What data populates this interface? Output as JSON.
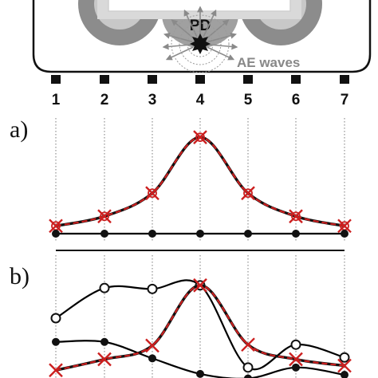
{
  "header": {
    "pd_label": "PD",
    "ae_label": "AE waves"
  },
  "sensors": [
    "1",
    "2",
    "3",
    "4",
    "5",
    "6",
    "7"
  ],
  "panels": [
    {
      "label": "a)"
    },
    {
      "label": "b)"
    }
  ],
  "colors": {
    "red_curve": "#cc1f1f",
    "black_curve": "#000000",
    "gray_dark": "#7f7f7f",
    "gray_light": "#bdbdbd",
    "ae_arrow": "#8a8a8a"
  },
  "chart_data": [
    {
      "type": "line",
      "panel": "a)",
      "categories": [
        "1",
        "2",
        "3",
        "4",
        "5",
        "6",
        "7"
      ],
      "series": [
        {
          "style": "red-dashed-x",
          "values": [
            0.08,
            0.18,
            0.42,
            1.0,
            0.42,
            0.18,
            0.08
          ]
        },
        {
          "style": "black-solid-filled",
          "values": [
            0,
            0,
            0,
            0,
            0,
            0,
            0
          ]
        }
      ],
      "ylim": [
        0,
        1.1
      ],
      "grid": "vertical dotted"
    },
    {
      "type": "line",
      "panel": "b)",
      "categories": [
        "1",
        "2",
        "3",
        "4",
        "5",
        "6",
        "7"
      ],
      "series": [
        {
          "style": "black-solid-open",
          "values": [
            0.62,
            0.95,
            0.94,
            0.98,
            0.08,
            0.33,
            0.19
          ]
        },
        {
          "style": "black-solid-filled",
          "values": [
            0.36,
            0.36,
            0.18,
            0.01,
            -0.04,
            0.08,
            0.0
          ]
        },
        {
          "style": "red-dashed-x",
          "values": [
            0.05,
            0.17,
            0.32,
            0.98,
            0.33,
            0.17,
            0.1
          ]
        }
      ],
      "ylim": [
        0,
        1.1
      ],
      "grid": "vertical dotted"
    }
  ]
}
